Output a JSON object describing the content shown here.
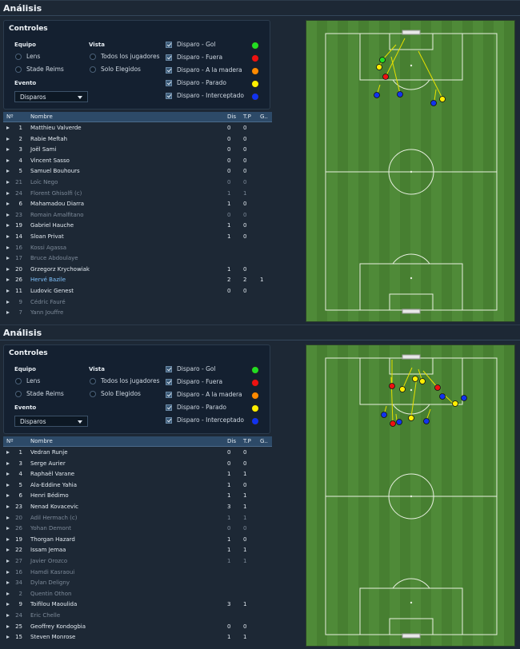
{
  "panels": [
    {
      "title": "Análisis",
      "controls": {
        "title": "Controles",
        "team_label": "Equipo",
        "teams": [
          "Lens",
          "Stade Reims"
        ],
        "view_label": "Vista",
        "views": [
          "Todos los jugadores",
          "Solo Elegidos"
        ],
        "event_label": "Evento",
        "event_value": "Disparos",
        "legend": [
          {
            "label": "Disparo - Gol",
            "color": "#22dd22"
          },
          {
            "label": "Disparo - Fuera",
            "color": "#ee1111"
          },
          {
            "label": "Disparo - A la madera",
            "color": "#ff8a00"
          },
          {
            "label": "Disparo - Parado",
            "color": "#ffee00"
          },
          {
            "label": "Disparo - Interceptado",
            "color": "#1133ee"
          }
        ]
      },
      "table": {
        "headers": [
          "Nº",
          "Nombre",
          "Dis",
          "T.P",
          "G.."
        ],
        "rows": [
          {
            "no": "1",
            "name": "Matthieu Valverde",
            "dis": "0",
            "tp": "0",
            "g": "",
            "dim": false
          },
          {
            "no": "2",
            "name": "Rabie Meftah",
            "dis": "0",
            "tp": "0",
            "g": "",
            "dim": false
          },
          {
            "no": "3",
            "name": "Joël Sami",
            "dis": "0",
            "tp": "0",
            "g": "",
            "dim": false
          },
          {
            "no": "4",
            "name": "Vincent Sasso",
            "dis": "0",
            "tp": "0",
            "g": "",
            "dim": false
          },
          {
            "no": "5",
            "name": "Samuel Bouhours",
            "dis": "0",
            "tp": "0",
            "g": "",
            "dim": false
          },
          {
            "no": "21",
            "name": "Loïc Nego",
            "dis": "0",
            "tp": "0",
            "g": "",
            "dim": true
          },
          {
            "no": "24",
            "name": "Florent Ghisolfi (c)",
            "dis": "1",
            "tp": "1",
            "g": "",
            "dim": true
          },
          {
            "no": "6",
            "name": "Mahamadou Diarra",
            "dis": "1",
            "tp": "0",
            "g": "",
            "dim": false
          },
          {
            "no": "23",
            "name": "Romain Amalfitano",
            "dis": "0",
            "tp": "0",
            "g": "",
            "dim": true
          },
          {
            "no": "19",
            "name": "Gabriel Hauche",
            "dis": "1",
            "tp": "0",
            "g": "",
            "dim": false
          },
          {
            "no": "14",
            "name": "Sloan Privat",
            "dis": "1",
            "tp": "0",
            "g": "",
            "dim": false
          },
          {
            "no": "16",
            "name": "Kossi Agassa",
            "dis": "",
            "tp": "",
            "g": "",
            "dim": true
          },
          {
            "no": "17",
            "name": "Bruce Abdoulaye",
            "dis": "",
            "tp": "",
            "g": "",
            "dim": true
          },
          {
            "no": "20",
            "name": "Grzegorz Krychowiak",
            "dis": "1",
            "tp": "0",
            "g": "",
            "dim": false
          },
          {
            "no": "26",
            "name": "Hervé Bazile",
            "dis": "2",
            "tp": "2",
            "g": "1",
            "dim": false,
            "highlight": true
          },
          {
            "no": "11",
            "name": "Ludovic Genest",
            "dis": "0",
            "tp": "0",
            "g": "",
            "dim": false
          },
          {
            "no": "9",
            "name": "Cédric Fauré",
            "dis": "",
            "tp": "",
            "g": "",
            "dim": true
          },
          {
            "no": "7",
            "name": "Yann Jouffre",
            "dis": "",
            "tp": "",
            "g": "",
            "dim": true
          }
        ]
      }
    },
    {
      "title": "Análisis",
      "controls": {
        "title": "Controles",
        "team_label": "Equipo",
        "teams": [
          "Lens",
          "Stade Reims"
        ],
        "view_label": "Vista",
        "views": [
          "Todos los jugadores",
          "Solo Elegidos"
        ],
        "event_label": "Evento",
        "event_value": "Disparos",
        "legend": [
          {
            "label": "Disparo - Gol",
            "color": "#22dd22"
          },
          {
            "label": "Disparo - Fuera",
            "color": "#ee1111"
          },
          {
            "label": "Disparo - A la madera",
            "color": "#ff8a00"
          },
          {
            "label": "Disparo - Parado",
            "color": "#ffee00"
          },
          {
            "label": "Disparo - Interceptado",
            "color": "#1133ee"
          }
        ]
      },
      "table": {
        "headers": [
          "Nº",
          "Nombre",
          "Dis",
          "T.P",
          "G.."
        ],
        "rows": [
          {
            "no": "1",
            "name": "Vedran Runje",
            "dis": "0",
            "tp": "0",
            "g": "",
            "dim": false
          },
          {
            "no": "3",
            "name": "Serge Aurier",
            "dis": "0",
            "tp": "0",
            "g": "",
            "dim": false
          },
          {
            "no": "4",
            "name": "Raphaël Varane",
            "dis": "1",
            "tp": "1",
            "g": "",
            "dim": false
          },
          {
            "no": "5",
            "name": "Ala-Eddine Yahia",
            "dis": "1",
            "tp": "0",
            "g": "",
            "dim": false
          },
          {
            "no": "6",
            "name": "Henri Bédimo",
            "dis": "1",
            "tp": "1",
            "g": "",
            "dim": false
          },
          {
            "no": "23",
            "name": "Nenad Kovacevic",
            "dis": "3",
            "tp": "1",
            "g": "",
            "dim": false
          },
          {
            "no": "20",
            "name": "Adil Hermach (c)",
            "dis": "1",
            "tp": "1",
            "g": "",
            "dim": true
          },
          {
            "no": "26",
            "name": "Yohan Demont",
            "dis": "0",
            "tp": "0",
            "g": "",
            "dim": true
          },
          {
            "no": "19",
            "name": "Thorgan Hazard",
            "dis": "1",
            "tp": "0",
            "g": "",
            "dim": false
          },
          {
            "no": "22",
            "name": "Issam Jemaa",
            "dis": "1",
            "tp": "1",
            "g": "",
            "dim": false
          },
          {
            "no": "27",
            "name": "Javier Orozco",
            "dis": "1",
            "tp": "1",
            "g": "",
            "dim": true
          },
          {
            "no": "16",
            "name": "Hamdi Kasraoui",
            "dis": "",
            "tp": "",
            "g": "",
            "dim": true
          },
          {
            "no": "34",
            "name": "Dylan Deligny",
            "dis": "",
            "tp": "",
            "g": "",
            "dim": true
          },
          {
            "no": "2",
            "name": "Quentin Othon",
            "dis": "",
            "tp": "",
            "g": "",
            "dim": true
          },
          {
            "no": "9",
            "name": "Toifilou Maoulida",
            "dis": "3",
            "tp": "1",
            "g": "",
            "dim": false
          },
          {
            "no": "24",
            "name": "Eric Chelle",
            "dis": "",
            "tp": "",
            "g": "",
            "dim": true
          },
          {
            "no": "25",
            "name": "Geoffrey Kondogbia",
            "dis": "0",
            "tp": "0",
            "g": "",
            "dim": false
          },
          {
            "no": "15",
            "name": "Steven Monrose",
            "dis": "1",
            "tp": "1",
            "g": "",
            "dim": false
          }
        ]
      }
    }
  ]
}
